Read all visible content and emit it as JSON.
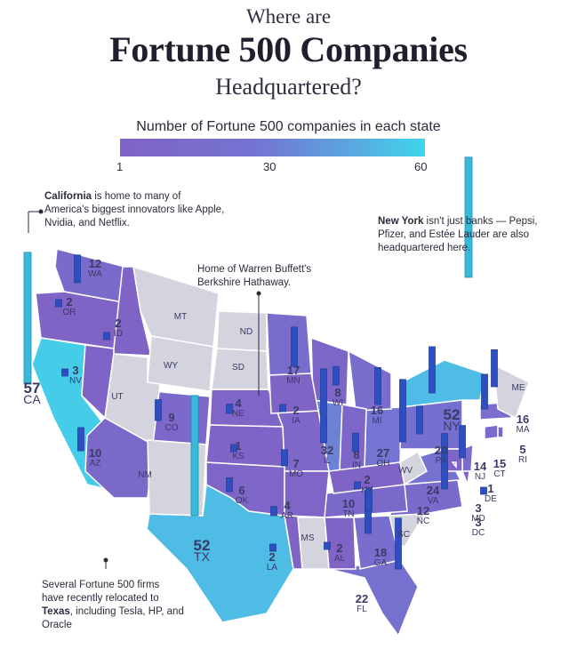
{
  "title": {
    "line1": "Where are",
    "line2": "Fortune 500 Companies",
    "line3": "Headquartered?"
  },
  "legend": {
    "title": "Number of Fortune 500 companies in each state",
    "ticks": [
      "1",
      "30",
      "60"
    ],
    "min": 1,
    "max": 60
  },
  "annotations": {
    "california": {
      "bold": "California",
      "rest": " is home to many of America's biggest innovators like Apple, Nvidia, and Netflix."
    },
    "newyork": {
      "bold": "New York",
      "rest": " isn't just banks — Pepsi, Pfizer, and Estée Lauder are also headquartered here."
    },
    "nebraska": {
      "text": "Home of Warren Buffett's Berkshire Hathaway."
    },
    "texas": {
      "pre": "Several Fortune 500 firms have recently relocated to ",
      "bold": "Texas",
      "post": ", including Tesla, HP, and Oracle"
    }
  },
  "states": [
    {
      "abbr": "CA",
      "count": 57
    },
    {
      "abbr": "TX",
      "count": 52
    },
    {
      "abbr": "NY",
      "count": 52
    },
    {
      "abbr": "IL",
      "count": 32
    },
    {
      "abbr": "OH",
      "count": 27
    },
    {
      "abbr": "VA",
      "count": 24
    },
    {
      "abbr": "FL",
      "count": 22
    },
    {
      "abbr": "PA",
      "count": 20
    },
    {
      "abbr": "GA",
      "count": 18
    },
    {
      "abbr": "MN",
      "count": 17
    },
    {
      "abbr": "MI",
      "count": 16
    },
    {
      "abbr": "MA",
      "count": 16
    },
    {
      "abbr": "WA",
      "count": 12
    },
    {
      "abbr": "NC",
      "count": 12
    },
    {
      "abbr": "NJ",
      "count": 14
    },
    {
      "abbr": "CT",
      "count": 15
    },
    {
      "abbr": "AZ",
      "count": 10
    },
    {
      "abbr": "TN",
      "count": 10
    },
    {
      "abbr": "CO",
      "count": 9
    },
    {
      "abbr": "WI",
      "count": 8
    },
    {
      "abbr": "IN",
      "count": 8
    },
    {
      "abbr": "MO",
      "count": 7
    },
    {
      "abbr": "OK",
      "count": 6
    },
    {
      "abbr": "RI",
      "count": 5
    },
    {
      "abbr": "NE",
      "count": 4
    },
    {
      "abbr": "AR",
      "count": 4
    },
    {
      "abbr": "NV",
      "count": 3
    },
    {
      "abbr": "MD",
      "count": 3
    },
    {
      "abbr": "DC",
      "count": 3
    },
    {
      "abbr": "OR",
      "count": 2
    },
    {
      "abbr": "ID",
      "count": 2
    },
    {
      "abbr": "IA",
      "count": 2
    },
    {
      "abbr": "KY",
      "count": 2
    },
    {
      "abbr": "LA",
      "count": 2
    },
    {
      "abbr": "AL",
      "count": 2
    },
    {
      "abbr": "KS",
      "count": 1
    },
    {
      "abbr": "DE",
      "count": 1
    },
    {
      "abbr": "MT",
      "count": null
    },
    {
      "abbr": "WY",
      "count": null
    },
    {
      "abbr": "ND",
      "count": null
    },
    {
      "abbr": "SD",
      "count": null
    },
    {
      "abbr": "UT",
      "count": null
    },
    {
      "abbr": "NM",
      "count": null
    },
    {
      "abbr": "MS",
      "count": null
    },
    {
      "abbr": "SC",
      "count": null
    },
    {
      "abbr": "WV",
      "count": null
    },
    {
      "abbr": "ME",
      "count": null
    }
  ],
  "colors": {
    "nodata": "#d4d4de",
    "low": "#7f63c6",
    "mid": "#7474d2",
    "high": "#3fd6ec",
    "bar": "#2f4fc0"
  }
}
